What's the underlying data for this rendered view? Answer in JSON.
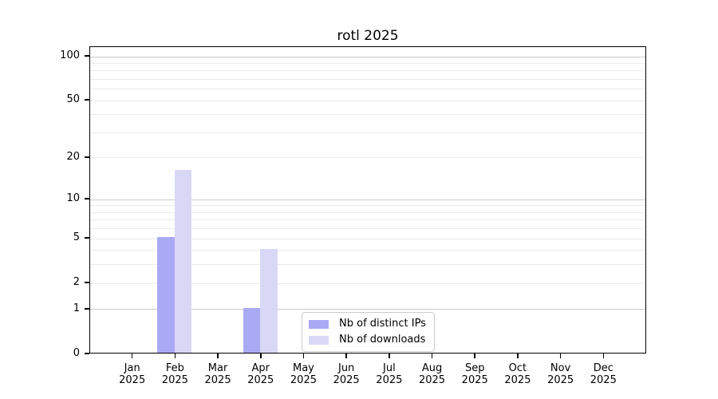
{
  "chart_data": {
    "type": "bar",
    "title": "rotl 2025",
    "x_tick_months": [
      "Jan",
      "Feb",
      "Mar",
      "Apr",
      "May",
      "Jun",
      "Jul",
      "Aug",
      "Sep",
      "Oct",
      "Nov",
      "Dec"
    ],
    "x_tick_year": "2025",
    "series": [
      {
        "name": "Nb of distinct IPs",
        "color": "#aaaaf4",
        "values": [
          0,
          5,
          0,
          1,
          0,
          0,
          0,
          0,
          0,
          0,
          0,
          0
        ]
      },
      {
        "name": "Nb of downloads",
        "color": "#d8d8f6",
        "values": [
          0,
          16,
          0,
          4,
          0,
          0,
          0,
          0,
          0,
          0,
          0,
          0
        ]
      }
    ],
    "y_axis": {
      "scale": "log1p",
      "ylim": [
        0,
        100
      ],
      "tick_values": [
        0,
        1,
        2,
        5,
        10,
        20,
        50,
        100
      ],
      "major_gridlines": [
        1,
        10,
        100
      ],
      "minor_gridlines": [
        2,
        3,
        4,
        5,
        6,
        7,
        8,
        9,
        20,
        30,
        40,
        50,
        60,
        70,
        80,
        90
      ]
    },
    "legend": {
      "position": "lower center",
      "entries": [
        "Nb of distinct IPs",
        "Nb of downloads"
      ]
    },
    "grid": true
  },
  "colors": {
    "background": "#ffffff",
    "axis": "#000000",
    "text": "#000000",
    "grid_major": "#cccccc",
    "grid_minor": "#ebebeb",
    "bar_distinct_ips": "#aaaaf4",
    "bar_downloads": "#d8d8f6",
    "legend_border": "#cccccc"
  }
}
